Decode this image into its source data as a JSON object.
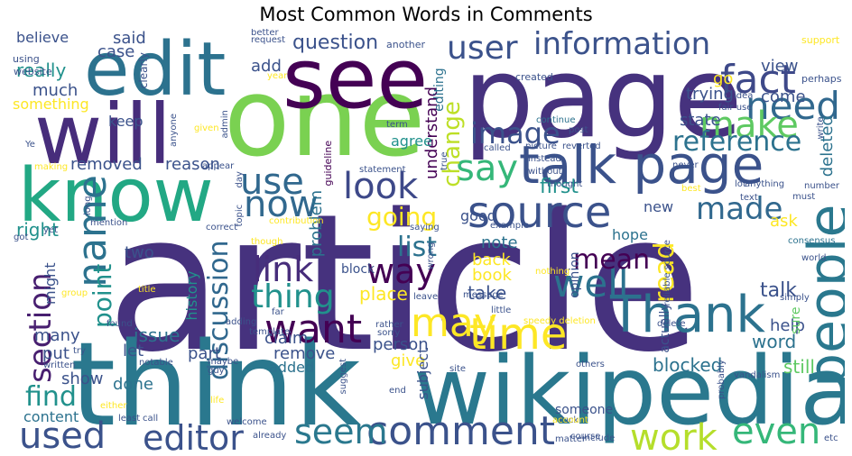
{
  "chart_data": {
    "type": "wordcloud",
    "title": "Most Common Words in Comments",
    "colormap": "viridis",
    "words": [
      {
        "text": "article",
        "weight": 1.0,
        "color": "#46327e"
      },
      {
        "text": "think",
        "weight": 0.7,
        "color": "#2a788e"
      },
      {
        "text": "page",
        "weight": 0.72,
        "color": "#46327e"
      },
      {
        "text": "one",
        "weight": 0.7,
        "color": "#7ad151"
      },
      {
        "text": "wikipedia",
        "weight": 0.6,
        "color": "#2a788e"
      },
      {
        "text": "see",
        "weight": 0.58,
        "color": "#440154"
      },
      {
        "text": "will",
        "weight": 0.55,
        "color": "#472d7b"
      },
      {
        "text": "know",
        "weight": 0.52,
        "color": "#22a884"
      },
      {
        "text": "edit",
        "weight": 0.5,
        "color": "#2c728e"
      },
      {
        "text": "talk page",
        "weight": 0.42,
        "color": "#3b528b"
      },
      {
        "text": "source",
        "weight": 0.35,
        "color": "#3b528b"
      },
      {
        "text": "people",
        "weight": 0.38,
        "color": "#2a788e"
      },
      {
        "text": "Thank",
        "weight": 0.36,
        "color": "#2c728e"
      },
      {
        "text": "comment",
        "weight": 0.32,
        "color": "#3b528b"
      },
      {
        "text": "time",
        "weight": 0.3,
        "color": "#fde725"
      },
      {
        "text": "want",
        "weight": 0.28,
        "color": "#440154"
      },
      {
        "text": "may",
        "weight": 0.3,
        "color": "#fde725"
      },
      {
        "text": "well",
        "weight": 0.3,
        "color": "#2c728e"
      },
      {
        "text": "fact",
        "weight": 0.28,
        "color": "#3e4989"
      },
      {
        "text": "need",
        "weight": 0.28,
        "color": "#31688e"
      },
      {
        "text": "make",
        "weight": 0.26,
        "color": "#5ec962"
      },
      {
        "text": "say",
        "weight": 0.26,
        "color": "#35b779"
      },
      {
        "text": "now",
        "weight": 0.26,
        "color": "#31688e"
      },
      {
        "text": "use",
        "weight": 0.26,
        "color": "#31688e"
      },
      {
        "text": "look",
        "weight": 0.24,
        "color": "#3e4989"
      },
      {
        "text": "name",
        "weight": 0.26,
        "color": "#2c728e"
      },
      {
        "text": "section",
        "weight": 0.24,
        "color": "#481f70"
      },
      {
        "text": "way",
        "weight": 0.24,
        "color": "#440154"
      },
      {
        "text": "link",
        "weight": 0.24,
        "color": "#472d7b"
      },
      {
        "text": "thing",
        "weight": 0.24,
        "color": "#21918c"
      },
      {
        "text": "used",
        "weight": 0.24,
        "color": "#3b528b"
      },
      {
        "text": "editor",
        "weight": 0.24,
        "color": "#3b528b"
      },
      {
        "text": "seem",
        "weight": 0.24,
        "color": "#2a788e"
      },
      {
        "text": "work",
        "weight": 0.24,
        "color": "#b5de2b"
      },
      {
        "text": "even",
        "weight": 0.24,
        "color": "#35b779"
      },
      {
        "text": "user",
        "weight": 0.22,
        "color": "#3b528b"
      },
      {
        "text": "information",
        "weight": 0.22,
        "color": "#3b528b"
      },
      {
        "text": "reference",
        "weight": 0.2,
        "color": "#2c728e"
      },
      {
        "text": "made",
        "weight": 0.2,
        "color": "#31688e"
      },
      {
        "text": "image",
        "weight": 0.2,
        "color": "#3b528b"
      },
      {
        "text": "mean",
        "weight": 0.2,
        "color": "#440154"
      },
      {
        "text": "point",
        "weight": 0.2,
        "color": "#21918c"
      },
      {
        "text": "discussion",
        "weight": 0.2,
        "color": "#31688e"
      },
      {
        "text": "change",
        "weight": 0.18,
        "color": "#bddf26"
      },
      {
        "text": "going",
        "weight": 0.18,
        "color": "#fde725"
      },
      {
        "text": "list",
        "weight": 0.18,
        "color": "#2c728e"
      },
      {
        "text": "find",
        "weight": 0.18,
        "color": "#21918c"
      },
      {
        "text": "read",
        "weight": 0.18,
        "color": "#fde725"
      },
      {
        "text": "question",
        "weight": 0.14,
        "color": "#3b528b"
      },
      {
        "text": "understand",
        "weight": 0.12,
        "color": "#440154"
      },
      {
        "text": "problem",
        "weight": 0.13,
        "color": "#2c728e"
      },
      {
        "text": "talk",
        "weight": 0.14,
        "color": "#3b528b"
      },
      {
        "text": "first",
        "weight": 0.14,
        "color": "#21918c"
      },
      {
        "text": "removed",
        "weight": 0.12,
        "color": "#3b528b"
      },
      {
        "text": "reason",
        "weight": 0.12,
        "color": "#3b528b"
      },
      {
        "text": "state",
        "weight": 0.12,
        "color": "#3b528b"
      },
      {
        "text": "trying",
        "weight": 0.12,
        "color": "#3b528b"
      },
      {
        "text": "deleted",
        "weight": 0.12,
        "color": "#2c728e"
      },
      {
        "text": "really",
        "weight": 0.12,
        "color": "#21918c"
      },
      {
        "text": "much",
        "weight": 0.12,
        "color": "#3b528b"
      },
      {
        "text": "something",
        "weight": 0.11,
        "color": "#fde725"
      },
      {
        "text": "right",
        "weight": 0.12,
        "color": "#21918c"
      },
      {
        "text": "place",
        "weight": 0.12,
        "color": "#fde725"
      },
      {
        "text": "take",
        "weight": 0.12,
        "color": "#3b528b"
      },
      {
        "text": "note",
        "weight": 0.11,
        "color": "#2c728e"
      },
      {
        "text": "back",
        "weight": 0.12,
        "color": "#fde725"
      },
      {
        "text": "book",
        "weight": 0.12,
        "color": "#fde725"
      },
      {
        "text": "word",
        "weight": 0.12,
        "color": "#2c728e"
      },
      {
        "text": "still",
        "weight": 0.12,
        "color": "#5ec962"
      },
      {
        "text": "blocked",
        "weight": 0.14,
        "color": "#2c728e"
      },
      {
        "text": "done",
        "weight": 0.12,
        "color": "#2c728e"
      },
      {
        "text": "issue",
        "weight": 0.12,
        "color": "#2c728e"
      },
      {
        "text": "claim",
        "weight": 0.12,
        "color": "#3b528b"
      },
      {
        "text": "part",
        "weight": 0.12,
        "color": "#3b528b"
      },
      {
        "text": "history",
        "weight": 0.11,
        "color": "#21918c"
      },
      {
        "text": "remove",
        "weight": 0.11,
        "color": "#3b528b"
      },
      {
        "text": "added",
        "weight": 0.11,
        "color": "#2c728e"
      },
      {
        "text": "content",
        "weight": 0.11,
        "color": "#2c728e"
      },
      {
        "text": "person",
        "weight": 0.11,
        "color": "#3b528b"
      },
      {
        "text": "give",
        "weight": 0.11,
        "color": "#fde725"
      },
      {
        "text": "help",
        "weight": 0.11,
        "color": "#3b528b"
      },
      {
        "text": "ask",
        "weight": 0.11,
        "color": "#fde725"
      },
      {
        "text": "good",
        "weight": 0.1,
        "color": "#3b528b"
      },
      {
        "text": "new",
        "weight": 0.1,
        "color": "#3b528b"
      },
      {
        "text": "hope",
        "weight": 0.1,
        "color": "#2c728e"
      },
      {
        "text": "agree",
        "weight": 0.1,
        "color": "#21918c"
      },
      {
        "text": "keep",
        "weight": 0.1,
        "color": "#3b528b"
      },
      {
        "text": "go",
        "weight": 0.1,
        "color": "#fde725"
      },
      {
        "text": "come",
        "weight": 0.1,
        "color": "#3b528b"
      },
      {
        "text": "view",
        "weight": 0.1,
        "color": "#3b528b"
      },
      {
        "text": "add",
        "weight": 0.1,
        "color": "#3b528b"
      },
      {
        "text": "case",
        "weight": 0.1,
        "color": "#3b528b"
      },
      {
        "text": "said",
        "weight": 0.1,
        "color": "#3b528b"
      },
      {
        "text": "believe",
        "weight": 0.1,
        "color": "#3b528b"
      },
      {
        "text": "two",
        "weight": 0.1,
        "color": "#3b528b"
      },
      {
        "text": "many",
        "weight": 0.1,
        "color": "#3b528b"
      },
      {
        "text": "put",
        "weight": 0.1,
        "color": "#3b528b"
      },
      {
        "text": "show",
        "weight": 0.1,
        "color": "#3b528b"
      },
      {
        "text": "let",
        "weight": 0.1,
        "color": "#3b528b"
      },
      {
        "text": "might",
        "weight": 0.09,
        "color": "#3b528b"
      },
      {
        "text": "editing",
        "weight": 0.09,
        "color": "#2c728e"
      },
      {
        "text": "subject",
        "weight": 0.09,
        "color": "#3b528b"
      },
      {
        "text": "actually",
        "weight": 0.09,
        "color": "#3b528b"
      },
      {
        "text": "opinion",
        "weight": 0.08,
        "color": "#3b528b"
      },
      {
        "text": "sure",
        "weight": 0.08,
        "color": "#5ec962"
      },
      {
        "text": "someone",
        "weight": 0.08,
        "color": "#3b528b"
      },
      {
        "text": "block",
        "weight": 0.08,
        "color": "#3b528b"
      },
      {
        "text": "guideline",
        "weight": 0.07,
        "color": "#440154"
      },
      {
        "text": "clearly",
        "weight": 0.06,
        "color": "#3b528b"
      },
      {
        "text": "website",
        "weight": 0.06,
        "color": "#3b528b"
      },
      {
        "text": "using",
        "weight": 0.06,
        "color": "#3b528b"
      },
      {
        "text": "support",
        "weight": 0.06,
        "color": "#fde725"
      },
      {
        "text": "perhaps",
        "weight": 0.06,
        "color": "#3b528b"
      },
      {
        "text": "created",
        "weight": 0.06,
        "color": "#3b528b"
      },
      {
        "text": "another",
        "weight": 0.06,
        "color": "#3b528b"
      },
      {
        "text": "request",
        "weight": 0.06,
        "color": "#3b528b"
      },
      {
        "text": "better",
        "weight": 0.06,
        "color": "#3b528b"
      },
      {
        "text": "year",
        "weight": 0.06,
        "color": "#fde725"
      },
      {
        "text": "term",
        "weight": 0.06,
        "color": "#3b528b"
      },
      {
        "text": "idea",
        "weight": 0.06,
        "color": "#3b528b"
      },
      {
        "text": "fair use",
        "weight": 0.06,
        "color": "#3b528b"
      },
      {
        "text": "write",
        "weight": 0.06,
        "color": "#3b528b"
      },
      {
        "text": "continue",
        "weight": 0.06,
        "color": "#2c728e"
      },
      {
        "text": "picture",
        "weight": 0.06,
        "color": "#3b528b"
      },
      {
        "text": "called",
        "weight": 0.06,
        "color": "#3b528b"
      },
      {
        "text": "post",
        "weight": 0.06,
        "color": "#3b528b"
      },
      {
        "text": "reverted",
        "weight": 0.06,
        "color": "#3b528b"
      },
      {
        "text": "instead",
        "weight": 0.06,
        "color": "#3b528b"
      },
      {
        "text": "without",
        "weight": 0.06,
        "color": "#3b528b"
      },
      {
        "text": "thought",
        "weight": 0.06,
        "color": "#3b528b"
      },
      {
        "text": "statement",
        "weight": 0.06,
        "color": "#3b528b"
      },
      {
        "text": "true",
        "weight": 0.06,
        "color": "#3b528b"
      },
      {
        "text": "admin",
        "weight": 0.06,
        "color": "#3b528b"
      },
      {
        "text": "anyone",
        "weight": 0.06,
        "color": "#3b528b"
      },
      {
        "text": "given",
        "weight": 0.06,
        "color": "#fde725"
      },
      {
        "text": "appear",
        "weight": 0.06,
        "color": "#3b528b"
      },
      {
        "text": "making",
        "weight": 0.06,
        "color": "#fde725"
      },
      {
        "text": "Ye",
        "weight": 0.06,
        "color": "#3b528b"
      },
      {
        "text": "long",
        "weight": 0.06,
        "color": "#3b528b"
      },
      {
        "text": "topic",
        "weight": 0.06,
        "color": "#3b528b"
      },
      {
        "text": "day",
        "weight": 0.06,
        "color": "#3b528b"
      },
      {
        "text": "contribution",
        "weight": 0.06,
        "color": "#fde725"
      },
      {
        "text": "correct",
        "weight": 0.06,
        "color": "#3b528b"
      },
      {
        "text": "mention",
        "weight": 0.06,
        "color": "#3b528b"
      },
      {
        "text": "yet",
        "weight": 0.06,
        "color": "#3b528b"
      },
      {
        "text": "got",
        "weight": 0.06,
        "color": "#3b528b"
      },
      {
        "text": "never",
        "weight": 0.06,
        "color": "#3b528b"
      },
      {
        "text": "best",
        "weight": 0.06,
        "color": "#fde725"
      },
      {
        "text": "lot",
        "weight": 0.06,
        "color": "#3b528b"
      },
      {
        "text": "anything",
        "weight": 0.06,
        "color": "#3b528b"
      },
      {
        "text": "text",
        "weight": 0.06,
        "color": "#3b528b"
      },
      {
        "text": "must",
        "weight": 0.06,
        "color": "#3b528b"
      },
      {
        "text": "number",
        "weight": 0.06,
        "color": "#3b528b"
      },
      {
        "text": "consensus",
        "weight": 0.06,
        "color": "#2c728e"
      },
      {
        "text": "world",
        "weight": 0.06,
        "color": "#3b528b"
      },
      {
        "text": "reliable source",
        "weight": 0.06,
        "color": "#3b528b"
      },
      {
        "text": "example",
        "weight": 0.06,
        "color": "#3b528b"
      },
      {
        "text": "saying",
        "weight": 0.06,
        "color": "#3b528b"
      },
      {
        "text": "nothing",
        "weight": 0.06,
        "color": "#fde725"
      },
      {
        "text": "wrong",
        "weight": 0.06,
        "color": "#3b528b"
      },
      {
        "text": "though",
        "weight": 0.06,
        "color": "#fde725"
      },
      {
        "text": "title",
        "weight": 0.06,
        "color": "#fde725"
      },
      {
        "text": "group",
        "weight": 0.06,
        "color": "#fde725"
      },
      {
        "text": "found",
        "weight": 0.06,
        "color": "#3b528b"
      },
      {
        "text": "adding",
        "weight": 0.06,
        "color": "#3b528b"
      },
      {
        "text": "far",
        "weight": 0.06,
        "color": "#3b528b"
      },
      {
        "text": "leave",
        "weight": 0.06,
        "color": "#3b528b"
      },
      {
        "text": "message",
        "weight": 0.06,
        "color": "#3b528b"
      },
      {
        "text": "little",
        "weight": 0.06,
        "color": "#3b528b"
      },
      {
        "text": "speedy deletion",
        "weight": 0.06,
        "color": "#fde725"
      },
      {
        "text": "delete",
        "weight": 0.06,
        "color": "#3b528b"
      },
      {
        "text": "simply",
        "weight": 0.06,
        "color": "#3b528b"
      },
      {
        "text": "template",
        "weight": 0.06,
        "color": "#3b528b"
      },
      {
        "text": "rather",
        "weight": 0.06,
        "color": "#3b528b"
      },
      {
        "text": "sorry",
        "weight": 0.06,
        "color": "#3b528b"
      },
      {
        "text": "try",
        "weight": 0.06,
        "color": "#3b528b"
      },
      {
        "text": "written",
        "weight": 0.06,
        "color": "#3b528b"
      },
      {
        "text": "notable",
        "weight": 0.06,
        "color": "#3b528b"
      },
      {
        "text": "maybe",
        "weight": 0.06,
        "color": "#3b528b"
      },
      {
        "text": "guy",
        "weight": 0.06,
        "color": "#3b528b"
      },
      {
        "text": "suggest",
        "weight": 0.06,
        "color": "#3b528b"
      },
      {
        "text": "site",
        "weight": 0.06,
        "color": "#3b528b"
      },
      {
        "text": "others",
        "weight": 0.06,
        "color": "#3b528b"
      },
      {
        "text": "probably",
        "weight": 0.06,
        "color": "#3b528b"
      },
      {
        "text": "vandalism",
        "weight": 0.06,
        "color": "#3b528b"
      },
      {
        "text": "either",
        "weight": 0.06,
        "color": "#fde725"
      },
      {
        "text": "life",
        "weight": 0.06,
        "color": "#fde725"
      },
      {
        "text": "least",
        "weight": 0.06,
        "color": "#3b528b"
      },
      {
        "text": "call",
        "weight": 0.06,
        "color": "#3b528b"
      },
      {
        "text": "welcome",
        "weight": 0.06,
        "color": "#3b528b"
      },
      {
        "text": "already",
        "weight": 0.06,
        "color": "#3b528b"
      },
      {
        "text": "end",
        "weight": 0.06,
        "color": "#3b528b"
      },
      {
        "text": "fuck",
        "weight": 0.06,
        "color": "#3b528b"
      },
      {
        "text": "course",
        "weight": 0.06,
        "color": "#3b528b"
      },
      {
        "text": "account",
        "weight": 0.06,
        "color": "#fde725"
      },
      {
        "text": "matter",
        "weight": 0.06,
        "color": "#3b528b"
      },
      {
        "text": "include",
        "weight": 0.06,
        "color": "#3b528b"
      },
      {
        "text": "etc",
        "weight": 0.06,
        "color": "#3b528b"
      }
    ]
  }
}
